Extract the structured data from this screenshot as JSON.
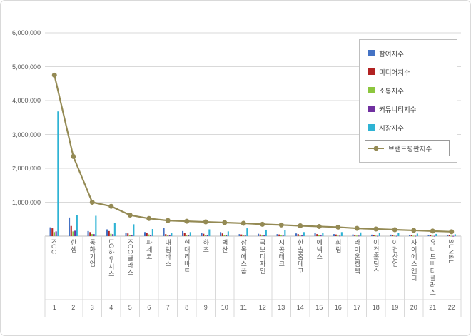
{
  "chart_data": {
    "type": "bar",
    "title": "",
    "grid": true,
    "legend_position": "top-right",
    "y_axis": {
      "min": 0,
      "max": 6000000,
      "tick_step": 1000000,
      "tick_labels": [
        "6,000,000",
        "5,000,000",
        "4,000,000",
        "3,000,000",
        "2,000,000",
        "1,000,000"
      ]
    },
    "categories": [
      "KCC",
      "한샘",
      "동화기업",
      "LG하우시스",
      "KCC글라스",
      "파세코",
      "대림바스",
      "현대리바트",
      "하츠",
      "벽산",
      "삼목에스폼",
      "국보디자인",
      "시공테크",
      "한솔홈데코",
      "에넥스",
      "희림",
      "라이온켐텍",
      "이건홀딩스",
      "이건산업",
      "자이에스앤디",
      "유니드비티플러스",
      "SUN&L"
    ],
    "ranks": [
      "1",
      "2",
      "3",
      "4",
      "5",
      "6",
      "7",
      "8",
      "9",
      "10",
      "11",
      "12",
      "13",
      "14",
      "15",
      "16",
      "17",
      "18",
      "19",
      "20",
      "21",
      "22"
    ],
    "bar_series": [
      {
        "name": "참여지수",
        "color": "#4472C4",
        "values": [
          260000,
          550000,
          150000,
          200000,
          100000,
          120000,
          250000,
          150000,
          90000,
          120000,
          60000,
          70000,
          60000,
          80000,
          90000,
          60000,
          50000,
          45000,
          45000,
          40000,
          35000,
          30000
        ]
      },
      {
        "name": "미디어지수",
        "color": "#B22222",
        "values": [
          230000,
          300000,
          120000,
          150000,
          80000,
          100000,
          60000,
          90000,
          70000,
          80000,
          50000,
          50000,
          50000,
          60000,
          60000,
          50000,
          40000,
          40000,
          35000,
          30000,
          30000,
          25000
        ]
      },
      {
        "name": "소통지수",
        "color": "#8CC63E",
        "values": [
          120000,
          140000,
          60000,
          70000,
          40000,
          50000,
          30000,
          40000,
          30000,
          30000,
          20000,
          20000,
          20000,
          25000,
          25000,
          20000,
          15000,
          15000,
          15000,
          12000,
          10000,
          10000
        ]
      },
      {
        "name": "커뮤니티지수",
        "color": "#7030A0",
        "values": [
          140000,
          160000,
          60000,
          60000,
          40000,
          40000,
          30000,
          40000,
          30000,
          30000,
          20000,
          20000,
          20000,
          20000,
          20000,
          15000,
          15000,
          10000,
          10000,
          10000,
          8000,
          8000
        ]
      },
      {
        "name": "시장지수",
        "color": "#2EB3D4",
        "values": [
          3680000,
          620000,
          600000,
          400000,
          350000,
          210000,
          90000,
          120000,
          200000,
          140000,
          230000,
          190000,
          180000,
          120000,
          90000,
          120000,
          110000,
          100000,
          85000,
          75000,
          65000,
          55000
        ]
      }
    ],
    "line_series": {
      "name": "브랜드평판지수",
      "color": "#948A54",
      "values": [
        4750000,
        2350000,
        1000000,
        880000,
        620000,
        520000,
        460000,
        440000,
        420000,
        400000,
        380000,
        350000,
        330000,
        305000,
        285000,
        265000,
        230000,
        210000,
        190000,
        170000,
        150000,
        130000
      ]
    }
  }
}
